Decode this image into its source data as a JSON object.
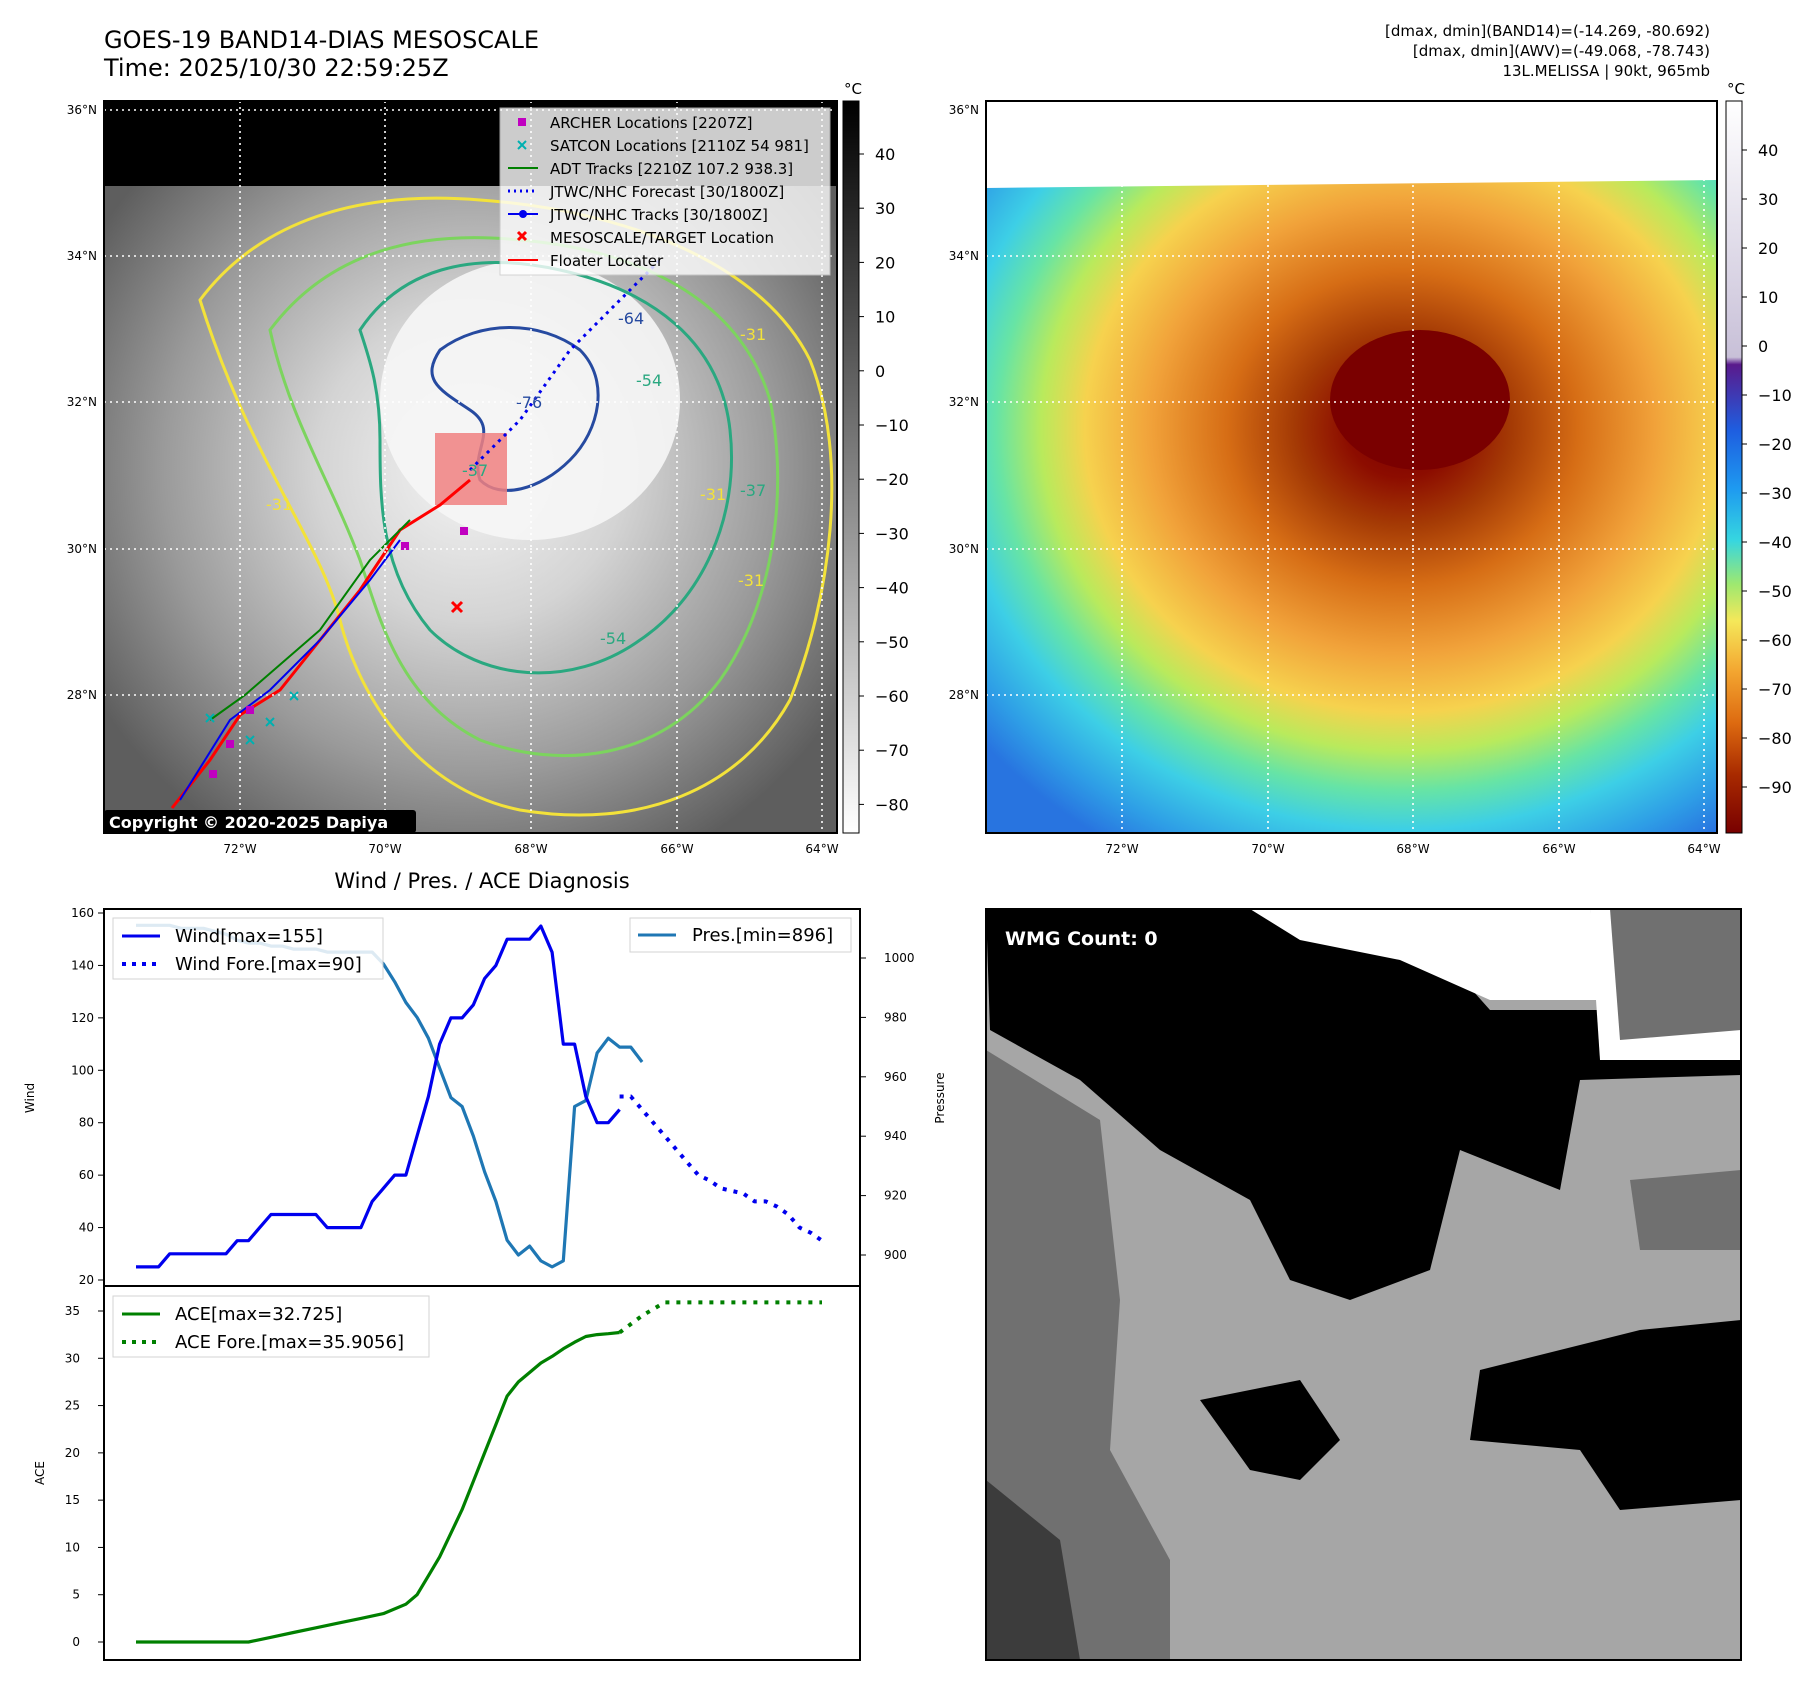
{
  "header": {
    "title_line1": "GOES-19 BAND14-DIAS MESOSCALE",
    "title_line2": "Time: 2025/10/30 22:59:25Z",
    "info_line1": "[dmax, dmin](BAND14)=(-14.269, -80.692)",
    "info_line2": "[dmax, dmin](AWV)=(-49.068, -78.743)",
    "info_line3": "13L.MELISSA | 90kt, 965mb"
  },
  "map": {
    "lat_labels": [
      "36°N",
      "34°N",
      "32°N",
      "30°N",
      "28°N"
    ],
    "lon_labels": [
      "72°W",
      "70°W",
      "68°W",
      "66°W",
      "64°W"
    ],
    "copyright": "Copyright © 2020-2025 Dapiya",
    "contour_labels": [
      "-64",
      "-54",
      "-76",
      "-37",
      "-31",
      "-31",
      "-31",
      "-37",
      "-54",
      "-31"
    ],
    "legend": [
      "ARCHER Locations [2207Z]",
      "SATCON Locations [2110Z 54 981]",
      "ADT Tracks [2210Z 107.2 938.3]",
      "JTWC/NHC Forecast [30/1800Z]",
      "JTWC/NHC Tracks [30/1800Z]",
      "MESOSCALE/TARGET Location",
      "Floater Locater"
    ],
    "colorbar_left": {
      "unit": "°C",
      "ticks": [
        "40",
        "30",
        "20",
        "10",
        "0",
        "−10",
        "−20",
        "−30",
        "−40",
        "−50",
        "−60",
        "−70",
        "−80"
      ]
    },
    "colorbar_right": {
      "unit": "°C",
      "ticks": [
        "40",
        "30",
        "20",
        "10",
        "0",
        "−10",
        "−20",
        "−30",
        "−40",
        "−50",
        "−60",
        "−70",
        "−80",
        "−90"
      ]
    }
  },
  "diagnosis": {
    "title": "Wind / Pres. / ACE Diagnosis",
    "wind_ylabel": "Wind",
    "pres_ylabel": "Pressure",
    "ace_ylabel": "ACE",
    "wind_ticks": [
      "160",
      "140",
      "120",
      "100",
      "80",
      "60",
      "40",
      "20"
    ],
    "pres_ticks": [
      "1000",
      "980",
      "960",
      "940",
      "920",
      "900"
    ],
    "ace_ticks": [
      "35",
      "30",
      "25",
      "20",
      "15",
      "10",
      "5",
      "0"
    ],
    "legend_wind": "Wind[max=155]",
    "legend_wind_fore": "Wind Fore.[max=90]",
    "legend_pres": "Pres.[min=896]",
    "legend_ace": "ACE[max=32.725]",
    "legend_ace_fore": "ACE Fore.[max=35.9056]"
  },
  "wmg": {
    "label": "WMG Count: 0"
  },
  "colors": {
    "wind": "#0000ee",
    "pressure": "#1f77b4",
    "ace": "#008000",
    "floater": "#ff0000",
    "archer": "#c000c0",
    "satcon": "#00b0b0"
  },
  "chart_data": [
    {
      "type": "line",
      "title": "Wind / Pres. / ACE Diagnosis",
      "ylabel": "Wind",
      "ylim": [
        20,
        160
      ],
      "series": [
        {
          "name": "Wind[max=155]",
          "axis": "wind",
          "x": [
            0,
            1,
            2,
            3,
            4,
            5,
            6,
            7,
            8,
            9,
            10,
            11,
            12,
            13,
            14,
            15,
            16,
            17,
            18,
            19,
            20,
            21,
            22,
            23,
            24,
            25,
            26,
            27,
            28,
            29,
            30,
            31,
            32,
            33,
            34,
            35,
            36,
            37,
            38,
            39,
            40,
            41,
            42,
            43
          ],
          "values": [
            25,
            25,
            25,
            30,
            30,
            30,
            30,
            30,
            30,
            35,
            35,
            40,
            45,
            45,
            45,
            45,
            45,
            40,
            40,
            40,
            40,
            50,
            55,
            60,
            60,
            75,
            90,
            110,
            120,
            120,
            125,
            135,
            140,
            150,
            150,
            150,
            155,
            145,
            110,
            110,
            90,
            80,
            80,
            85
          ]
        },
        {
          "name": "Wind Fore.[max=90]",
          "axis": "wind",
          "x": [
            43,
            44,
            45,
            46,
            47,
            48,
            49,
            50,
            51,
            52,
            53,
            54,
            55,
            56,
            57,
            58,
            59,
            60,
            61
          ],
          "values": [
            90,
            90,
            85,
            80,
            75,
            70,
            65,
            60,
            58,
            55,
            54,
            53,
            50,
            50,
            48,
            45,
            40,
            38,
            35
          ]
        },
        {
          "name": "Pres.[min=896]",
          "axis": "pressure",
          "ylim": [
            892,
            1015
          ],
          "x": [
            0,
            1,
            2,
            3,
            4,
            5,
            6,
            7,
            8,
            9,
            10,
            11,
            12,
            13,
            14,
            15,
            16,
            17,
            18,
            19,
            20,
            21,
            22,
            23,
            24,
            25,
            26,
            27,
            28,
            29,
            30,
            31,
            32,
            33,
            34,
            35,
            36,
            37,
            38,
            39,
            40,
            41,
            42,
            43,
            44,
            45
          ],
          "values": [
            1011,
            1011,
            1011,
            1011,
            1010,
            1010,
            1010,
            1009,
            1008,
            1006,
            1005,
            1005,
            1004,
            1004,
            1003,
            1003,
            1003,
            1002,
            1002,
            1002,
            1002,
            1002,
            998,
            992,
            985,
            980,
            973,
            963,
            953,
            950,
            940,
            928,
            918,
            905,
            900,
            903,
            898,
            896,
            898,
            950,
            952,
            968,
            973,
            970,
            970,
            965
          ]
        }
      ]
    },
    {
      "type": "line",
      "ylabel": "ACE",
      "ylim": [
        -1.5,
        36.5
      ],
      "series": [
        {
          "name": "ACE[max=32.725]",
          "x": [
            0,
            2,
            4,
            6,
            8,
            10,
            12,
            14,
            16,
            18,
            20,
            22,
            24,
            25,
            26,
            27,
            28,
            29,
            30,
            31,
            32,
            33,
            34,
            35,
            36,
            37,
            38,
            39,
            40,
            41,
            42,
            43
          ],
          "values": [
            0,
            0,
            0,
            0,
            0,
            0,
            0.5,
            1,
            1.5,
            2,
            2.5,
            3,
            4,
            5,
            7,
            9,
            11.5,
            14,
            17,
            20,
            23,
            26,
            27.5,
            28.5,
            29.5,
            30.2,
            31,
            31.7,
            32.3,
            32.5,
            32.6,
            32.725
          ]
        },
        {
          "name": "ACE Fore.[max=35.9056]",
          "x": [
            43,
            45,
            47,
            49,
            51,
            53,
            55,
            57,
            59,
            61
          ],
          "values": [
            32.725,
            34.5,
            35.9056,
            35.9056,
            35.9056,
            35.9056,
            35.9056,
            35.9056,
            35.9056,
            35.9056
          ]
        }
      ]
    }
  ]
}
